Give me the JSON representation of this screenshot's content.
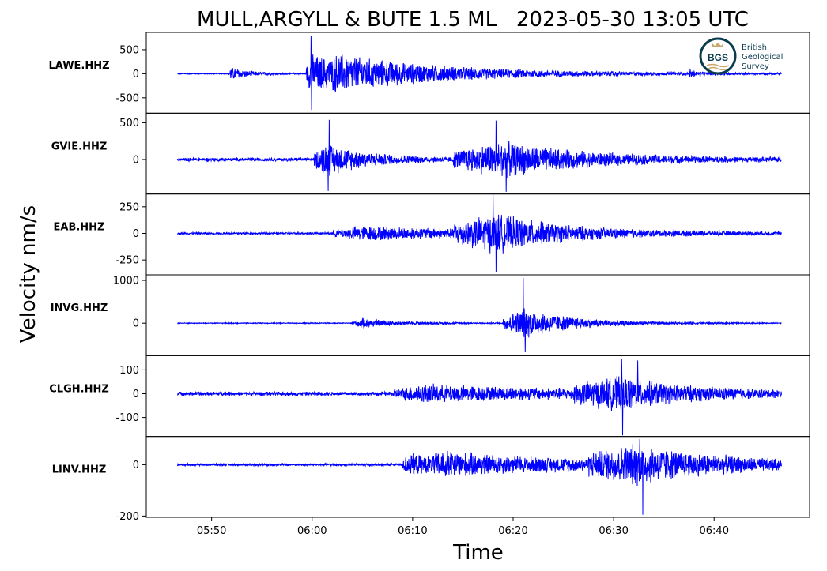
{
  "chart_data": {
    "type": "line",
    "title": "MULL,ARGYLL & BUTE 1.5 ML   2023-05-30 13:05 UTC",
    "xlabel": "Time",
    "ylabel": "Velocity nm/s",
    "x_ticks": [
      "05:50",
      "06:00",
      "06:10",
      "06:20",
      "06:30",
      "06:40"
    ],
    "x_tick_minutes": [
      350,
      360,
      370,
      380,
      390,
      400
    ],
    "xlim_minutes": [
      343.5,
      409.5
    ],
    "trace_start_minute": 346.6,
    "trace_end_minute": 406.7,
    "line_color": "#0000ff",
    "logo": {
      "text": "BGS",
      "lines": [
        "British",
        "Geological",
        "Survey"
      ],
      "color": "#0b3b4f"
    },
    "panels": [
      {
        "station": "LAWE.HHZ",
        "ylim": [
          -820,
          860
        ],
        "yticks": [
          500,
          0,
          -500
        ],
        "ytick_labels": [
          "500",
          "0",
          "-500"
        ],
        "noise": 10,
        "events": [
          {
            "start": 351.7,
            "peak": 351.9,
            "decay": 2.0,
            "amp": 150
          },
          {
            "start": 359.4,
            "peak": 359.9,
            "decay": 9.0,
            "amp": 430
          },
          {
            "start": 362.0,
            "peak": 362.5,
            "decay": 18.0,
            "amp": 130
          },
          {
            "start": 397.5,
            "peak": 397.6,
            "decay": 0.5,
            "amp": 90
          }
        ],
        "spikes": [
          {
            "t": 359.9,
            "v": 790
          },
          {
            "t": 359.95,
            "v": -750
          }
        ]
      },
      {
        "station": "GVIE.HHZ",
        "ylim": [
          -470,
          630
        ],
        "yticks": [
          500,
          0
        ],
        "ytick_labels": [
          "500",
          "0"
        ],
        "noise": 25,
        "events": [
          {
            "start": 360.2,
            "peak": 361.3,
            "decay": 4.5,
            "amp": 230
          },
          {
            "start": 374.0,
            "peak": 378.8,
            "decay": 9.0,
            "amp": 250
          }
        ],
        "spikes": [
          {
            "t": 361.7,
            "v": 540
          },
          {
            "t": 361.6,
            "v": -430
          },
          {
            "t": 378.3,
            "v": 530
          },
          {
            "t": 379.3,
            "v": -440
          }
        ]
      },
      {
        "station": "EAB.HHZ",
        "ylim": [
          -390,
          370
        ],
        "yticks": [
          250,
          0,
          -250
        ],
        "ytick_labels": [
          "250",
          "0",
          "-250"
        ],
        "noise": 10,
        "events": [
          {
            "start": 362.1,
            "peak": 364.8,
            "decay": 18.0,
            "amp": 70
          },
          {
            "start": 374.0,
            "peak": 378.4,
            "decay": 6.5,
            "amp": 165
          }
        ],
        "spikes": [
          {
            "t": 378.0,
            "v": 365
          },
          {
            "t": 378.3,
            "v": -360
          }
        ]
      },
      {
        "station": "INVG.HHZ",
        "ylim": [
          -760,
          1130
        ],
        "yticks": [
          1000,
          0
        ],
        "ytick_labels": [
          "1000",
          "0"
        ],
        "noise": 12,
        "events": [
          {
            "start": 364.0,
            "peak": 364.8,
            "decay": 4.0,
            "amp": 120
          },
          {
            "start": 379.0,
            "peak": 381.2,
            "decay": 5.0,
            "amp": 380
          }
        ],
        "spikes": [
          {
            "t": 381.0,
            "v": 1060
          },
          {
            "t": 381.2,
            "v": -680
          }
        ]
      },
      {
        "station": "CLGH.HHZ",
        "ylim": [
          -180,
          160
        ],
        "yticks": [
          100,
          0,
          -100
        ],
        "ytick_labels": [
          "100",
          "0",
          "-100"
        ],
        "noise": 9,
        "events": [
          {
            "start": 368.0,
            "peak": 371.0,
            "decay": 20.0,
            "amp": 36
          },
          {
            "start": 386.0,
            "peak": 390.6,
            "decay": 6.5,
            "amp": 60
          }
        ],
        "spikes": [
          {
            "t": 390.8,
            "v": 145
          },
          {
            "t": 390.9,
            "v": -175
          },
          {
            "t": 392.4,
            "v": 140
          }
        ]
      },
      {
        "station": "LINV.HHZ",
        "ylim": [
          -205,
          110
        ],
        "yticks": [
          0,
          -200
        ],
        "ytick_labels": [
          "0",
          "-200"
        ],
        "noise": 5,
        "events": [
          {
            "start": 369.0,
            "peak": 369.7,
            "decay": 5.0,
            "amp": 45
          },
          {
            "start": 372.0,
            "peak": 373.0,
            "decay": 30.0,
            "amp": 35
          },
          {
            "start": 387.5,
            "peak": 392.2,
            "decay": 7.5,
            "amp": 68
          }
        ],
        "spikes": [
          {
            "t": 392.9,
            "v": -195
          },
          {
            "t": 392.6,
            "v": 100
          }
        ]
      }
    ]
  }
}
